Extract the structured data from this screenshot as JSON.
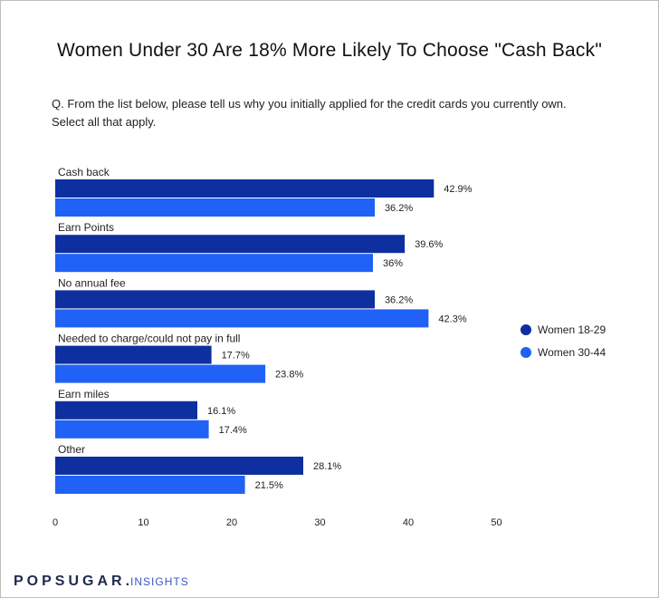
{
  "page": {
    "title": "Women Under 30 Are 18% More Likely To Choose \"Cash Back\"",
    "question": "Q. From the list below, please tell us why you initially applied for the credit cards you currently own. Select all that apply.",
    "brand": {
      "name": "POPSUGAR",
      "dot": ".",
      "suffix": "INSIGHTS"
    }
  },
  "colors": {
    "women_18_29": "#0d2fa0",
    "women_30_44": "#1f62f5"
  },
  "chart_data": {
    "type": "bar",
    "orientation": "horizontal",
    "categories": [
      "Cash back",
      "Earn Points",
      "No annual fee",
      "Needed to charge/could not pay in full",
      "Earn miles",
      "Other"
    ],
    "series": [
      {
        "name": "Women 18-29",
        "values": [
          42.9,
          39.6,
          36.2,
          17.7,
          16.1,
          28.1
        ],
        "labels": [
          "42.9%",
          "39.6%",
          "36.2%",
          "17.7%",
          "16.1%",
          "28.1%"
        ]
      },
      {
        "name": "Women 30-44",
        "values": [
          36.2,
          36,
          42.3,
          23.8,
          17.4,
          21.5
        ],
        "labels": [
          "36.2%",
          "36%",
          "42.3%",
          "23.8%",
          "17.4%",
          "21.5%"
        ]
      }
    ],
    "xlim": [
      0,
      50
    ],
    "xticks": [
      0,
      10,
      20,
      30,
      40,
      50
    ],
    "xlabel": "",
    "ylabel": "",
    "grid": false,
    "legend": "right"
  }
}
